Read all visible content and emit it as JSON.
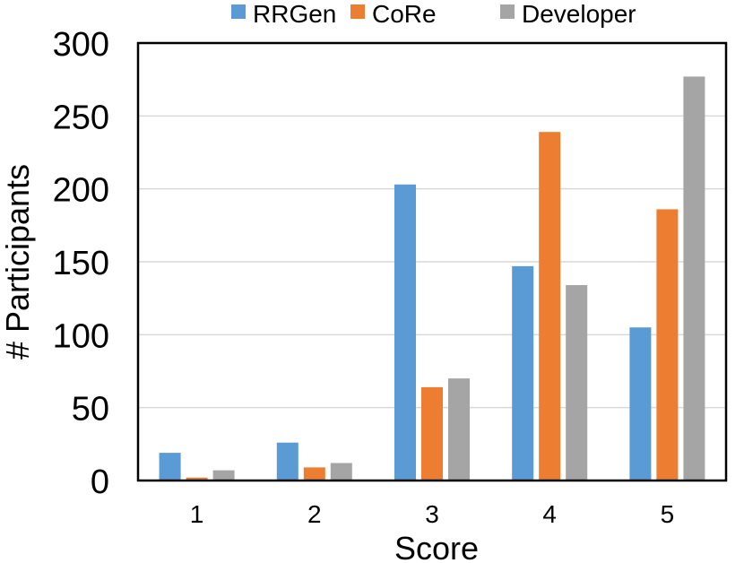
{
  "chart_data": {
    "type": "bar",
    "title": "",
    "xlabel": "Score",
    "ylabel": "# Participants",
    "categories": [
      "1",
      "2",
      "3",
      "4",
      "5"
    ],
    "series": [
      {
        "name": "RRGen",
        "color": "#5B9BD5",
        "values": [
          19,
          26,
          203,
          147,
          105
        ]
      },
      {
        "name": "CoRe",
        "color": "#ED7D31",
        "values": [
          2,
          9,
          64,
          239,
          186
        ]
      },
      {
        "name": "Developer",
        "color": "#A5A5A5",
        "values": [
          7,
          12,
          70,
          134,
          277
        ]
      }
    ],
    "ylim": [
      0,
      300
    ],
    "yticks": [
      "0",
      "50",
      "100",
      "150",
      "200",
      "250",
      "300"
    ],
    "grid": true,
    "legend_position": "top-center"
  }
}
